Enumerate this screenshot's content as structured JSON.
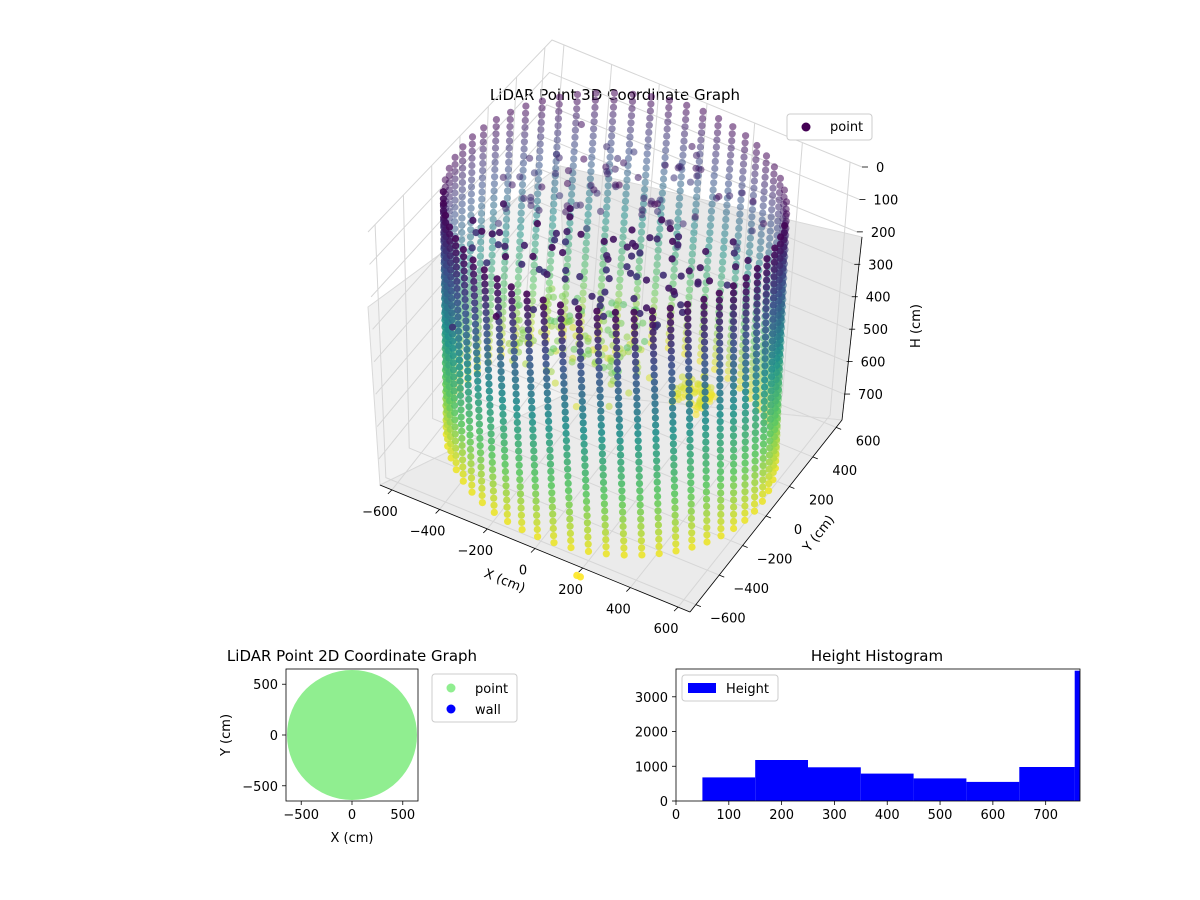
{
  "chart_data": [
    {
      "type": "scatter",
      "projection": "3d",
      "title": "LiDAR Point 3D Coordinate Graph",
      "xlabel": "X (cm)",
      "ylabel": "Y (cm)",
      "zlabel": "H (cm)",
      "xlim": [
        -650,
        650
      ],
      "ylim": [
        -650,
        650
      ],
      "zlim": [
        780,
        0
      ],
      "z_inverted": true,
      "xticks": [
        "−600",
        "−400",
        "−200",
        "0",
        "200",
        "400",
        "600"
      ],
      "yticks": [
        "−600",
        "−400",
        "−200",
        "0",
        "200",
        "400",
        "600"
      ],
      "zticks": [
        "0",
        "100",
        "200",
        "300",
        "400",
        "500",
        "600",
        "700"
      ],
      "colormap": "viridis",
      "legend": [
        {
          "label": "point",
          "color": "#440154"
        }
      ],
      "legend_position": "top-right",
      "grid": true,
      "series": [
        {
          "name": "point",
          "wall_radius_cm": 620,
          "height_range_cm": [
            0,
            770
          ],
          "outliers": [
            {
              "x": -240,
              "y": -760,
              "h": 120
            },
            {
              "x": -600,
              "y": -200,
              "h": 160
            },
            {
              "x": -30,
              "y": -790,
              "h": 10
            },
            {
              "x": 200,
              "y": -700,
              "h": 780
            },
            {
              "x": 215,
              "y": -700,
              "h": 780
            }
          ]
        }
      ]
    },
    {
      "type": "scatter",
      "title": "LiDAR Point 2D Coordinate Graph",
      "xlabel": "X (cm)",
      "ylabel": "Y (cm)",
      "xlim": [
        -650,
        650
      ],
      "ylim": [
        -650,
        650
      ],
      "xticks": [
        "−500",
        "0",
        "500"
      ],
      "yticks": [
        "−500",
        "0",
        "500"
      ],
      "legend": [
        {
          "label": "point",
          "color": "#90ee90"
        },
        {
          "label": "wall",
          "color": "#0000ff"
        }
      ],
      "legend_position": "outside-right",
      "series": [
        {
          "name": "point",
          "color": "#90ee90",
          "disk_radius_cm": 640
        }
      ]
    },
    {
      "type": "bar",
      "title": "Height Histogram",
      "xlim": [
        0,
        765
      ],
      "ylim": [
        0,
        3800
      ],
      "xticks": [
        "0",
        "100",
        "200",
        "300",
        "400",
        "500",
        "600",
        "700"
      ],
      "yticks": [
        "0",
        "1000",
        "2000",
        "3000"
      ],
      "legend": [
        {
          "label": "Height",
          "color": "#0000ff"
        }
      ],
      "legend_position": "top-left",
      "bin_edges": [
        50,
        150,
        250,
        350,
        450,
        550,
        650,
        755,
        765
      ],
      "counts": [
        680,
        1180,
        970,
        790,
        650,
        550,
        980,
        3750
      ]
    }
  ]
}
